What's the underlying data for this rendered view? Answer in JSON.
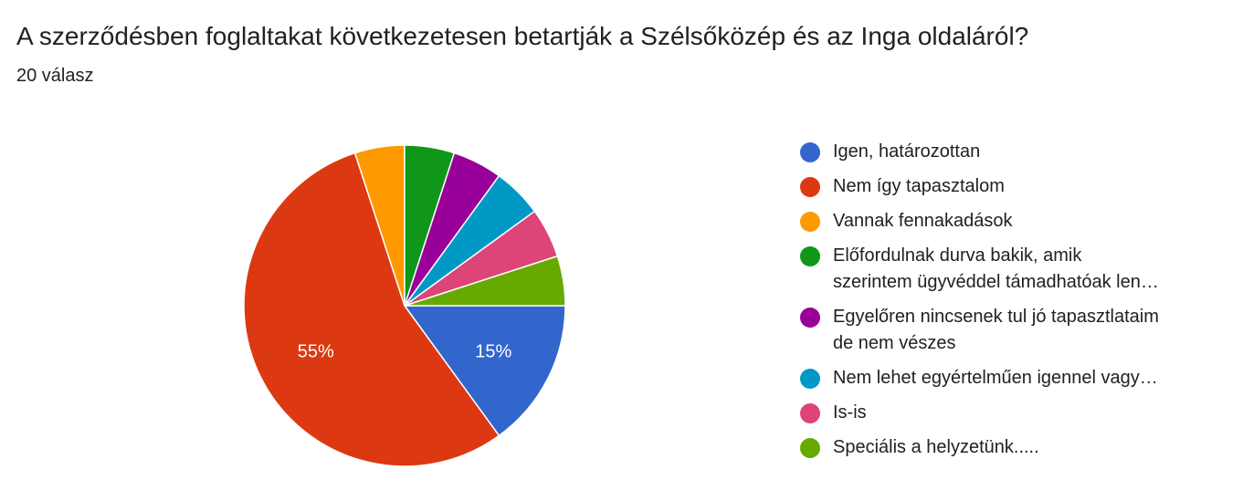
{
  "header": {
    "title": "A szerződésben foglaltakat következetesen betartják a Szélsőközép és az Inga oldaláról?",
    "subtitle": "20 válasz"
  },
  "chart_data": {
    "type": "pie",
    "legend_position": "right",
    "slices": [
      {
        "label": "Igen, határozottan",
        "value": 15,
        "color": "#3366cc",
        "data_label": "15%"
      },
      {
        "label": "Nem így tapasztalom",
        "value": 55,
        "color": "#dc3912",
        "data_label": "55%"
      },
      {
        "label": "Vannak fennakadások",
        "value": 5,
        "color": "#ff9900",
        "data_label": ""
      },
      {
        "label": "Előfordulnak durva bakik, amik\nszerintem ügyvéddel támadhatóak len…",
        "value": 5,
        "color": "#109618",
        "data_label": ""
      },
      {
        "label": "Egyelőren nincsenek tul jó tapasztlataim\nde nem vészes",
        "value": 5,
        "color": "#990099",
        "data_label": ""
      },
      {
        "label": "Nem lehet egyértelműen igennel vagy…",
        "value": 5,
        "color": "#0099c6",
        "data_label": ""
      },
      {
        "label": "Is-is",
        "value": 5,
        "color": "#dd4477",
        "data_label": ""
      },
      {
        "label": "Speciális a helyzetünk.....",
        "value": 5,
        "color": "#66aa00",
        "data_label": ""
      }
    ]
  }
}
